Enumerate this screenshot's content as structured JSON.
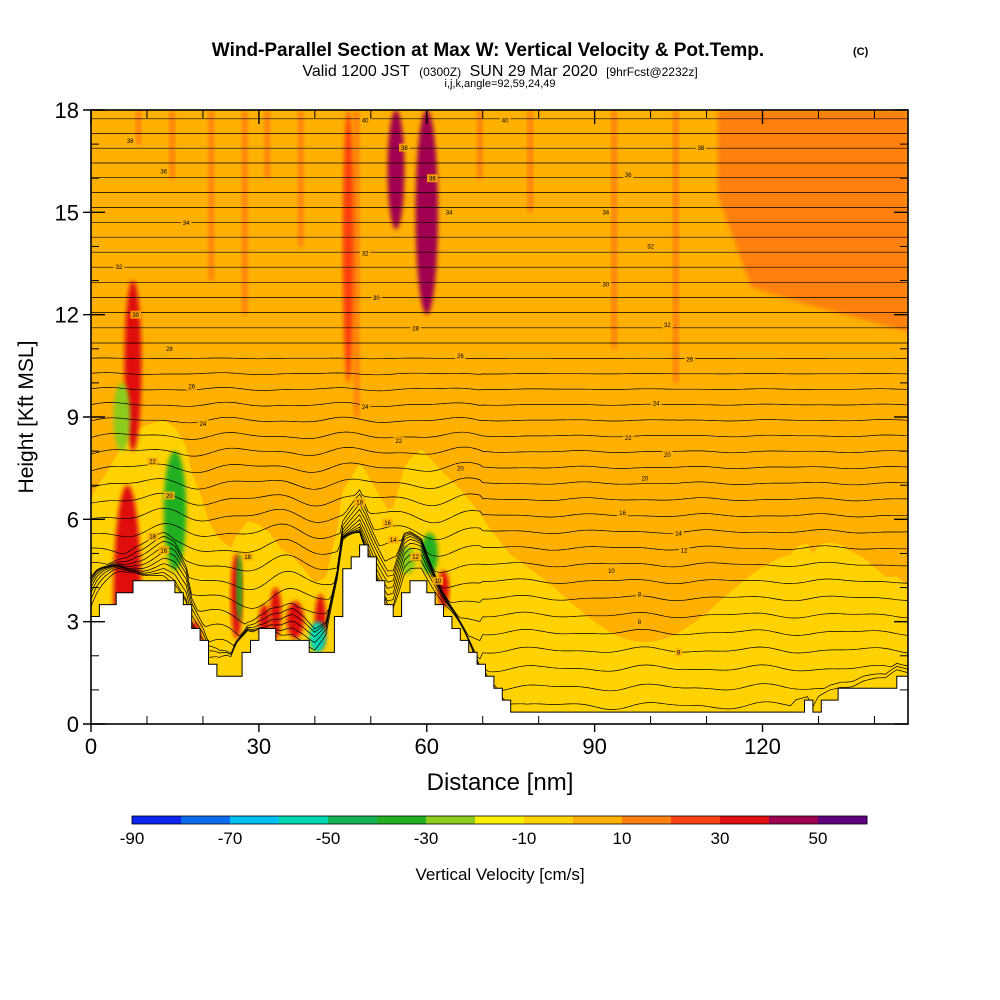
{
  "chart_data": {
    "type": "heatmap",
    "title": "Wind-Parallel Section at Max W: Vertical Velocity & Pot.Temp.",
    "title_mark": "(C)",
    "subtitle": {
      "valid_prefix": "Valid 1200 JST",
      "utc": "(0300Z)",
      "date": "SUN 29 Mar 2020",
      "forecast": "[9hrFcst@2232z]",
      "indices": "i,j,k,angle=92,59,24,49"
    },
    "xlabel": "Distance [nm]",
    "ylabel": "Height [Kft MSL]",
    "xlim": [
      0,
      146
    ],
    "ylim": [
      0,
      18
    ],
    "x_ticks": [
      0,
      30,
      60,
      90,
      120
    ],
    "y_ticks": [
      0,
      3,
      6,
      9,
      12,
      15,
      18
    ],
    "grid": false,
    "colorbar": {
      "label": "Vertical Velocity [cm/s]",
      "placement": "bottom",
      "tick_values": [
        -90,
        -70,
        -50,
        -30,
        -10,
        10,
        30,
        50
      ],
      "tick_labels": [
        "-90",
        "-70",
        "-50",
        "-30",
        "-10",
        "10",
        "30",
        "50"
      ],
      "levels": [
        -90,
        -80,
        -70,
        -60,
        -50,
        -40,
        -30,
        -20,
        -10,
        0,
        10,
        20,
        30,
        40,
        50,
        60
      ],
      "colors": [
        "#0b24f0",
        "#0a6cf0",
        "#00c0f2",
        "#00d7b0",
        "#12b352",
        "#22b022",
        "#8ccc1c",
        "#f8f000",
        "#ffd200",
        "#ffb000",
        "#ff8010",
        "#ff4010",
        "#e01010",
        "#a00050",
        "#600080"
      ]
    },
    "terrain_profile": {
      "x": [
        0,
        1,
        3,
        5,
        7,
        8,
        11,
        13,
        15,
        17,
        18,
        20,
        21,
        23,
        25,
        26,
        28,
        30,
        32,
        34,
        36,
        38,
        40,
        42,
        44,
        45,
        47,
        48,
        49,
        51,
        52,
        53,
        54,
        56,
        57,
        59,
        61,
        63,
        65,
        67,
        69,
        71,
        73,
        75,
        78,
        82,
        86,
        90,
        95,
        100,
        105,
        110,
        115,
        120,
        125,
        126,
        128,
        129,
        130,
        132,
        134,
        136,
        138,
        140,
        142,
        144,
        146
      ],
      "y": [
        3.2,
        3.4,
        3.6,
        3.9,
        4.1,
        4.2,
        4.2,
        4.2,
        4.0,
        3.5,
        2.8,
        2.1,
        1.6,
        1.3,
        1.3,
        1.8,
        2.5,
        2.7,
        2.7,
        2.5,
        2.5,
        2.3,
        2.0,
        2.2,
        3.6,
        4.7,
        5.1,
        5.3,
        5.0,
        4.2,
        3.8,
        3.4,
        3.3,
        4.2,
        4.3,
        4.3,
        3.7,
        3.1,
        2.6,
        2.1,
        1.6,
        1.1,
        0.7,
        0.4,
        0.3,
        0.3,
        0.3,
        0.3,
        0.3,
        0.3,
        0.3,
        0.3,
        0.3,
        0.3,
        0.3,
        0.5,
        0.6,
        0.3,
        0.6,
        0.8,
        0.9,
        0.9,
        1.0,
        1.0,
        1.0,
        1.3,
        1.3
      ]
    },
    "theta_contours": {
      "label": "Pot.Temp.",
      "count": 40,
      "surface_level_kft": 0.45,
      "top_level_kft": 18.6,
      "inline_labels": [
        {
          "x": 105,
          "y": 2.1,
          "text": "8"
        },
        {
          "x": 98,
          "y": 3.0,
          "text": "8"
        },
        {
          "x": 98,
          "y": 3.8,
          "text": "8"
        },
        {
          "x": 93,
          "y": 4.5,
          "text": "10"
        },
        {
          "x": 106,
          "y": 5.1,
          "text": "12"
        },
        {
          "x": 105,
          "y": 5.6,
          "text": "14"
        },
        {
          "x": 95,
          "y": 6.2,
          "text": "16"
        },
        {
          "x": 99,
          "y": 7.2,
          "text": "20"
        },
        {
          "x": 66,
          "y": 7.5,
          "text": "20"
        },
        {
          "x": 103,
          "y": 7.9,
          "text": "20"
        },
        {
          "x": 96,
          "y": 8.4,
          "text": "22"
        },
        {
          "x": 55,
          "y": 8.3,
          "text": "22"
        },
        {
          "x": 101,
          "y": 9.4,
          "text": "24"
        },
        {
          "x": 49,
          "y": 9.3,
          "text": "24"
        },
        {
          "x": 66,
          "y": 10.8,
          "text": "26"
        },
        {
          "x": 107,
          "y": 10.7,
          "text": "26"
        },
        {
          "x": 58,
          "y": 11.6,
          "text": "28"
        },
        {
          "x": 51,
          "y": 12.5,
          "text": "30"
        },
        {
          "x": 92,
          "y": 12.9,
          "text": "30"
        },
        {
          "x": 103,
          "y": 11.7,
          "text": "32"
        },
        {
          "x": 49,
          "y": 13.8,
          "text": "32"
        },
        {
          "x": 100,
          "y": 14.0,
          "text": "32"
        },
        {
          "x": 64,
          "y": 15.0,
          "text": "34"
        },
        {
          "x": 92,
          "y": 15.0,
          "text": "34"
        },
        {
          "x": 61,
          "y": 16.0,
          "text": "36"
        },
        {
          "x": 96,
          "y": 16.1,
          "text": "36"
        },
        {
          "x": 56,
          "y": 16.9,
          "text": "38"
        },
        {
          "x": 109,
          "y": 16.9,
          "text": "38"
        },
        {
          "x": 49,
          "y": 17.7,
          "text": "40"
        },
        {
          "x": 74,
          "y": 17.7,
          "text": "40"
        },
        {
          "x": 7,
          "y": 17.1,
          "text": "38"
        },
        {
          "x": 13,
          "y": 16.2,
          "text": "36"
        },
        {
          "x": 17,
          "y": 14.7,
          "text": "34"
        },
        {
          "x": 5,
          "y": 13.4,
          "text": "32"
        },
        {
          "x": 8,
          "y": 12.0,
          "text": "30"
        },
        {
          "x": 14,
          "y": 11.0,
          "text": "28"
        },
        {
          "x": 18,
          "y": 9.9,
          "text": "26"
        },
        {
          "x": 20,
          "y": 8.8,
          "text": "24"
        },
        {
          "x": 11,
          "y": 7.7,
          "text": "22"
        },
        {
          "x": 14,
          "y": 6.7,
          "text": "20"
        },
        {
          "x": 11,
          "y": 5.5,
          "text": "18"
        },
        {
          "x": 13,
          "y": 5.1,
          "text": "16"
        },
        {
          "x": 28,
          "y": 4.9,
          "text": "18"
        },
        {
          "x": 48,
          "y": 6.5,
          "text": "18"
        },
        {
          "x": 53,
          "y": 5.9,
          "text": "16"
        },
        {
          "x": 54,
          "y": 5.4,
          "text": "14"
        },
        {
          "x": 58,
          "y": 4.9,
          "text": "12"
        },
        {
          "x": 62,
          "y": 4.2,
          "text": "10"
        }
      ]
    },
    "updraft_cores": [
      {
        "x": [
          4,
          9
        ],
        "y": [
          0,
          7
        ],
        "w": 30
      },
      {
        "x": [
          6,
          9
        ],
        "y": [
          8,
          13
        ],
        "w": 30
      },
      {
        "x": [
          17,
          20
        ],
        "y": [
          1,
          3
        ],
        "w": 30
      },
      {
        "x": [
          25,
          27
        ],
        "y": [
          2.5,
          5
        ],
        "w": 30
      },
      {
        "x": [
          30,
          32
        ],
        "y": [
          2.5,
          3.5
        ],
        "w": 30
      },
      {
        "x": [
          32,
          34
        ],
        "y": [
          2.5,
          4
        ],
        "w": 30
      },
      {
        "x": [
          35,
          38
        ],
        "y": [
          2.5,
          3.6
        ],
        "w": 30
      },
      {
        "x": [
          40,
          42
        ],
        "y": [
          2.2,
          3.8
        ],
        "w": 30
      },
      {
        "x": [
          53,
          56
        ],
        "y": [
          14.5,
          18
        ],
        "w": 40
      },
      {
        "x": [
          58,
          62
        ],
        "y": [
          12,
          18
        ],
        "w": 40
      },
      {
        "x": [
          45,
          47
        ],
        "y": [
          10,
          18
        ],
        "w": 20
      },
      {
        "x": [
          62,
          64
        ],
        "y": [
          3.4,
          4.5
        ],
        "w": 30
      }
    ],
    "downdraft_cores": [
      {
        "x": [
          4,
          7
        ],
        "y": [
          8,
          10
        ],
        "w": -30
      },
      {
        "x": [
          13,
          17
        ],
        "y": [
          4.5,
          8
        ],
        "w": -40
      },
      {
        "x": [
          26,
          27
        ],
        "y": [
          3,
          5
        ],
        "w": -40
      },
      {
        "x": [
          39,
          42
        ],
        "y": [
          2.1,
          3
        ],
        "w": -60
      },
      {
        "x": [
          55,
          58
        ],
        "y": [
          4.4,
          5.2
        ],
        "w": -30
      },
      {
        "x": [
          59,
          62
        ],
        "y": [
          4.4,
          5.6
        ],
        "w": -40
      }
    ]
  }
}
